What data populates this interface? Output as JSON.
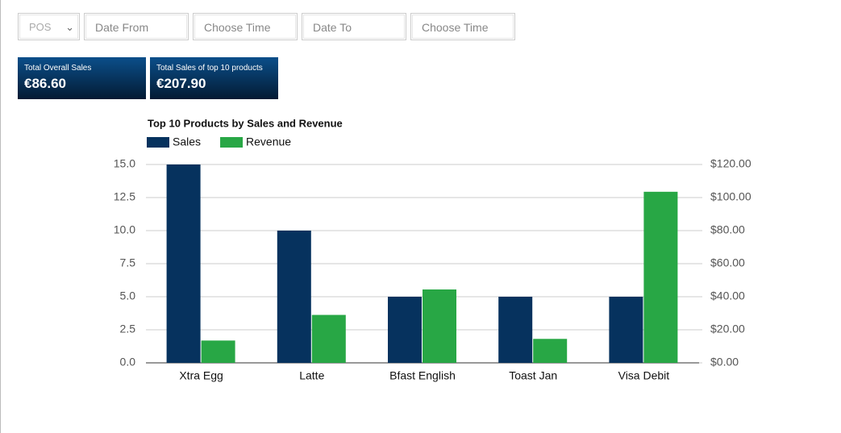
{
  "controls": {
    "pos": "POS",
    "date_from": "Date From",
    "time_from": "Choose Time",
    "date_to": "Date To",
    "time_to": "Choose Time"
  },
  "cards": [
    {
      "label": "Total Overall Sales",
      "value": "€86.60"
    },
    {
      "label": "Total Sales of top 10 products",
      "value": "€207.90"
    }
  ],
  "chart_data": {
    "type": "bar",
    "title": "Top 10 Products by Sales and Revenue",
    "categories": [
      "Xtra Egg",
      "Latte",
      "Bfast English",
      "Toast Jan",
      "Visa Debit"
    ],
    "series": [
      {
        "name": "Sales",
        "color": "#06325e",
        "values": [
          15,
          10,
          5,
          5,
          5
        ]
      },
      {
        "name": "Revenue",
        "color": "#28a745",
        "axis": "y2",
        "values": [
          13.5,
          29,
          44.4,
          14.5,
          103.5
        ]
      }
    ],
    "ylim": [
      0,
      15
    ],
    "yticks": [
      {
        "value": 0,
        "label": "0.0"
      },
      2.5,
      {
        "value": 5,
        "label": "5.0"
      },
      7.5,
      {
        "value": 10,
        "label": "10.0"
      },
      12.5,
      {
        "value": 15,
        "label": "15.0"
      }
    ],
    "y2lim": [
      0,
      120
    ],
    "y2ticks": [
      {
        "value": 0,
        "label": "$0.00"
      },
      {
        "value": 20,
        "label": "$20.00"
      },
      {
        "value": 40,
        "label": "$40.00"
      },
      {
        "value": 60,
        "label": "$60.00"
      },
      {
        "value": 80,
        "label": "$80.00"
      },
      {
        "value": 100,
        "label": "$100.00"
      },
      {
        "value": 120,
        "label": "$120.00"
      }
    ],
    "grid": true,
    "legend": "top-left"
  }
}
